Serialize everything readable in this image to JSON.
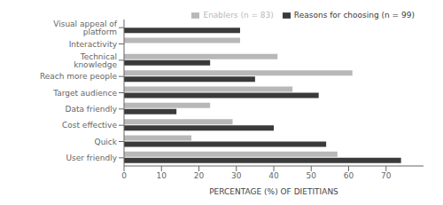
{
  "chart_data": {
    "type": "bar",
    "orientation": "horizontal",
    "categories": [
      "Visual appeal of platform",
      "Interactivity",
      "Technical knowledge",
      "Reach more people",
      "Target audience",
      "Data friendly",
      "Cost effective",
      "Quick",
      "User friendly"
    ],
    "series": [
      {
        "name": "Enablers (n = 83)",
        "color": "#b8b8b8",
        "values": [
          0,
          31,
          41,
          61,
          45,
          23,
          29,
          18,
          57
        ]
      },
      {
        "name": "Reasons for choosing (n = 99)",
        "color": "#3a3a3a",
        "values": [
          31,
          0,
          23,
          35,
          52,
          14,
          40,
          54,
          74
        ]
      }
    ],
    "xlabel": "PERCENTAGE (%) OF DIETITIANS",
    "xlim": [
      0,
      80
    ],
    "xticks": [
      0,
      10,
      20,
      30,
      40,
      50,
      60,
      70
    ],
    "grid": false,
    "legend": "upper right"
  }
}
